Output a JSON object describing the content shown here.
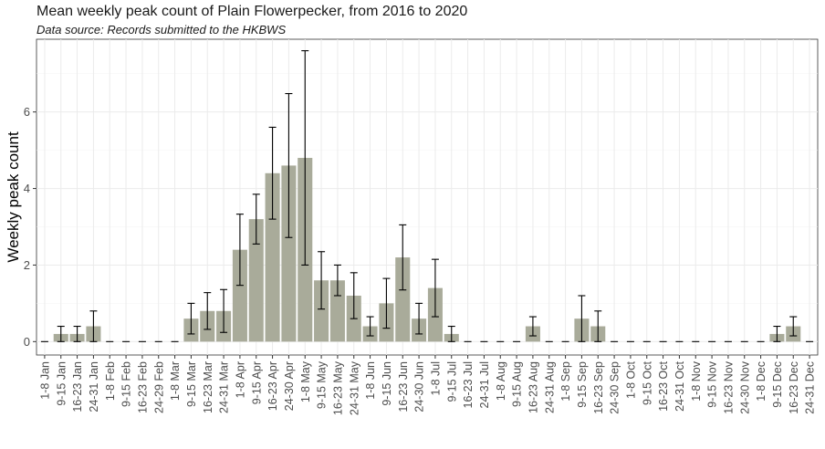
{
  "chart_data": {
    "type": "bar",
    "title": "Mean weekly peak count of Plain Flowerpecker, from 2016 to 2020",
    "subtitle": "Data source: Records submitted to the HKBWS",
    "xlabel": "",
    "ylabel": "Weekly peak count",
    "ylim": [
      -0.35,
      7.9
    ],
    "yticks": [
      0,
      2,
      4,
      6
    ],
    "grid": true,
    "legend": "none",
    "colors": {
      "bar": "#a9ab9a",
      "error_bar": "#000000",
      "grid": "#ebebeb",
      "axis_text": "#4d4d4d"
    },
    "categories": [
      "1-8 Jan",
      "9-15 Jan",
      "16-23 Jan",
      "24-31 Jan",
      "1-8 Feb",
      "9-15 Feb",
      "16-23 Feb",
      "24-29 Feb",
      "1-8 Mar",
      "9-15 Mar",
      "16-23 Mar",
      "24-31 Mar",
      "1-8 Apr",
      "9-15 Apr",
      "16-23 Apr",
      "24-30 Apr",
      "1-8 May",
      "9-15 May",
      "16-23 May",
      "24-31 May",
      "1-8 Jun",
      "9-15 Jun",
      "16-23 Jun",
      "24-30 Jun",
      "1-8 Jul",
      "9-15 Jul",
      "16-23 Jul",
      "24-31 Jul",
      "1-8 Aug",
      "9-15 Aug",
      "16-23 Aug",
      "24-31 Aug",
      "1-8 Sep",
      "9-15 Sep",
      "16-23 Sep",
      "24-30 Sep",
      "1-8 Oct",
      "9-15 Oct",
      "16-23 Oct",
      "24-31 Oct",
      "1-8 Nov",
      "9-15 Nov",
      "16-23 Nov",
      "24-30 Nov",
      "1-8 Dec",
      "9-15 Dec",
      "16-23 Dec",
      "24-31 Dec"
    ],
    "values": [
      0,
      0.2,
      0.2,
      0.4,
      0,
      0,
      0,
      0,
      0,
      0.6,
      0.8,
      0.8,
      2.4,
      3.2,
      4.4,
      4.6,
      4.8,
      1.6,
      1.6,
      1.2,
      0.4,
      1.0,
      2.2,
      0.6,
      1.4,
      0.2,
      0,
      0,
      0,
      0,
      0.4,
      0,
      0,
      0.6,
      0.4,
      0,
      0,
      0,
      0,
      0,
      0,
      0,
      0,
      0,
      0,
      0.2,
      0.4,
      0
    ],
    "error_low": [
      0,
      0,
      0,
      0,
      0,
      0,
      0,
      0,
      0,
      0.2,
      0.32,
      0.24,
      1.47,
      2.55,
      3.2,
      2.72,
      2.0,
      0.85,
      1.2,
      0.6,
      0.15,
      0.35,
      1.35,
      0.2,
      0.65,
      0,
      0,
      0,
      0,
      0,
      0.15,
      0,
      0,
      0,
      0,
      0,
      0,
      0,
      0,
      0,
      0,
      0,
      0,
      0,
      0,
      0,
      0.15,
      0
    ],
    "error_high": [
      0,
      0.4,
      0.4,
      0.8,
      0,
      0,
      0,
      0,
      0,
      1.0,
      1.28,
      1.36,
      3.33,
      3.85,
      5.6,
      6.48,
      7.6,
      2.35,
      2.0,
      1.8,
      0.65,
      1.65,
      3.05,
      1.0,
      2.15,
      0.4,
      0,
      0,
      0,
      0,
      0.65,
      0,
      0,
      1.2,
      0.8,
      0,
      0,
      0,
      0,
      0,
      0,
      0,
      0,
      0,
      0,
      0.4,
      0.65,
      0
    ]
  }
}
